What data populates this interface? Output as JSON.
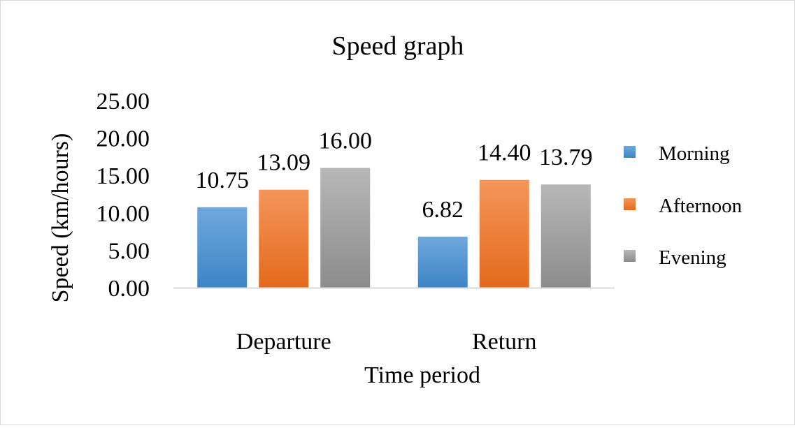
{
  "chart_data": {
    "type": "bar",
    "title": "Speed graph",
    "xlabel": "Time period",
    "ylabel": "Speed (km/hours)",
    "categories": [
      "Departure",
      "Return"
    ],
    "series": [
      {
        "name": "Morning",
        "values": [
          10.75,
          6.82
        ],
        "labels": [
          "10.75",
          "6.82"
        ]
      },
      {
        "name": "Afternoon",
        "values": [
          13.09,
          14.4
        ],
        "labels": [
          "13.09",
          "14.40"
        ]
      },
      {
        "name": "Evening",
        "values": [
          16.0,
          13.79
        ],
        "labels": [
          "16.00",
          "13.79"
        ]
      }
    ],
    "ylim": [
      0,
      25
    ],
    "yticks": [
      "0.00",
      "5.00",
      "10.00",
      "15.00",
      "20.00",
      "25.00"
    ],
    "grid": false,
    "legend_position": "right",
    "colors": {
      "Morning": [
        "#6fa8dc",
        "#3d85c6"
      ],
      "Afternoon": [
        "#f4955a",
        "#e46a1c"
      ],
      "Evening": [
        "#b7b7b7",
        "#8c8c8c"
      ],
      "axis": "#d9d9d9"
    }
  }
}
